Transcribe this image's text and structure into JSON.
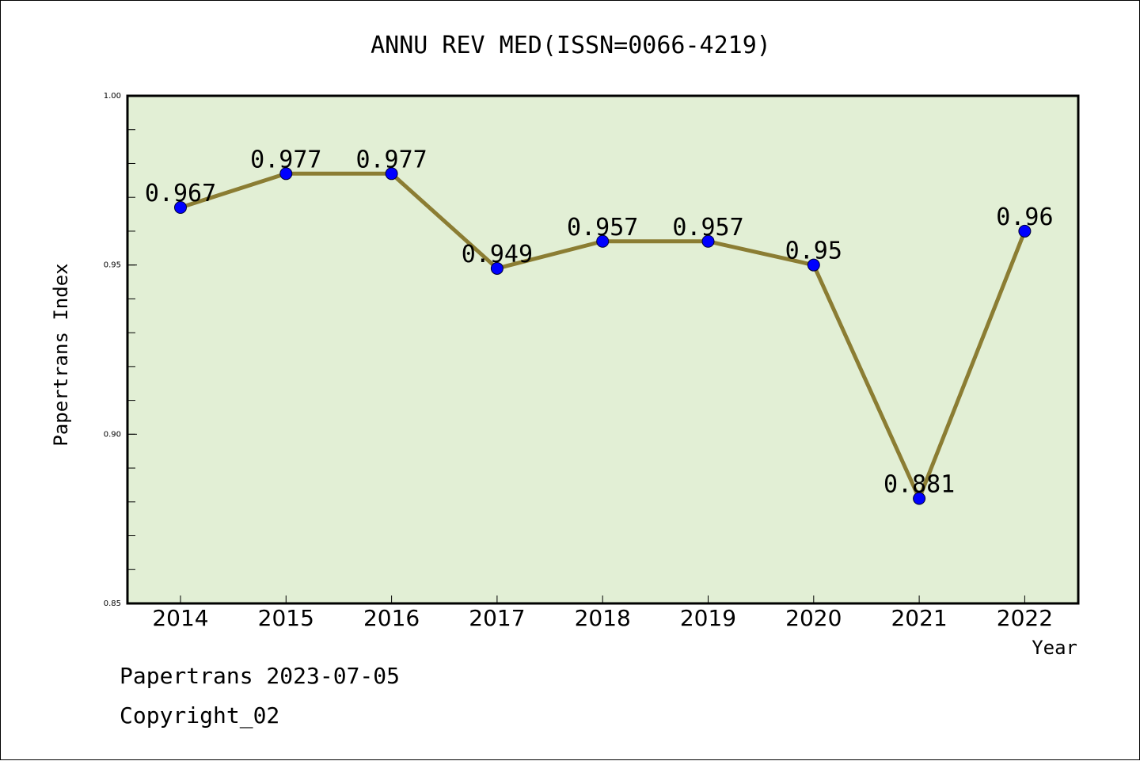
{
  "chart_data": {
    "type": "line",
    "title": "ANNU REV MED(ISSN=0066-4219)",
    "xlabel": "Year",
    "ylabel": "Papertrans Index",
    "categories": [
      "2014",
      "2015",
      "2016",
      "2017",
      "2018",
      "2019",
      "2020",
      "2021",
      "2022"
    ],
    "values": [
      0.967,
      0.977,
      0.977,
      0.949,
      0.957,
      0.957,
      0.95,
      0.881,
      0.96
    ],
    "data_labels": [
      "0.967",
      "0.977",
      "0.977",
      "0.949",
      "0.957",
      "0.957",
      "0.95",
      "0.881",
      "0.96"
    ],
    "ylim": [
      0.85,
      1.0
    ],
    "yticks": [
      0.85,
      0.9,
      0.95,
      1.0
    ],
    "ytick_labels": [
      "0.85",
      "0.90",
      "0.95",
      "1.00"
    ],
    "y_minor_step": 0.01,
    "grid": false,
    "legend": "none",
    "colors": {
      "plot_background": "#e2efd5",
      "line": "#8b7d33",
      "marker": "#0000ff",
      "axes": "#000000"
    }
  },
  "footer": {
    "date_line": "Papertrans 2023-07-05",
    "copyright_line": "Copyright_02"
  }
}
